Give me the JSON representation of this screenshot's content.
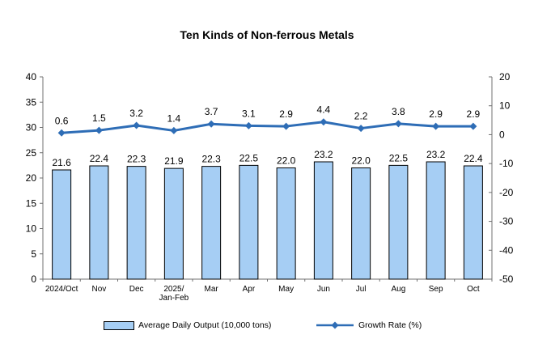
{
  "chart_data": {
    "type": "bar+line combo",
    "title": "Ten Kinds of Non-ferrous Metals",
    "categories": [
      "2024/Oct",
      "Nov",
      "Dec",
      "2025/\nJan-Feb",
      "Mar",
      "Apr",
      "May",
      "Jun",
      "Jul",
      "Aug",
      "Sep",
      "Oct"
    ],
    "series": [
      {
        "name": "Average Daily Output (10,000 tons)",
        "type": "bar",
        "axis": "left",
        "values": [
          21.6,
          22.4,
          22.3,
          21.9,
          22.3,
          22.5,
          22.0,
          23.2,
          22.0,
          22.5,
          23.2,
          22.4
        ]
      },
      {
        "name": "Growth Rate (%)",
        "type": "line",
        "axis": "right",
        "values": [
          0.6,
          1.5,
          3.2,
          1.4,
          3.7,
          3.1,
          2.9,
          4.4,
          2.2,
          3.8,
          2.9,
          2.9
        ]
      }
    ],
    "left_axis": {
      "min": 0,
      "max": 40,
      "ticks": [
        0,
        5,
        10,
        15,
        20,
        25,
        30,
        35,
        40
      ]
    },
    "right_axis": {
      "min": -50,
      "max": 20,
      "ticks": [
        -50,
        -40,
        -30,
        -20,
        -10,
        0,
        10,
        20
      ]
    },
    "grid": false,
    "legend_position": "bottom",
    "data_labels": true,
    "colors": {
      "bar_fill": "#A6CEF4",
      "bar_border": "#000000",
      "line": "#2E6DB6",
      "axis": "#707070",
      "text": "#000000"
    }
  }
}
